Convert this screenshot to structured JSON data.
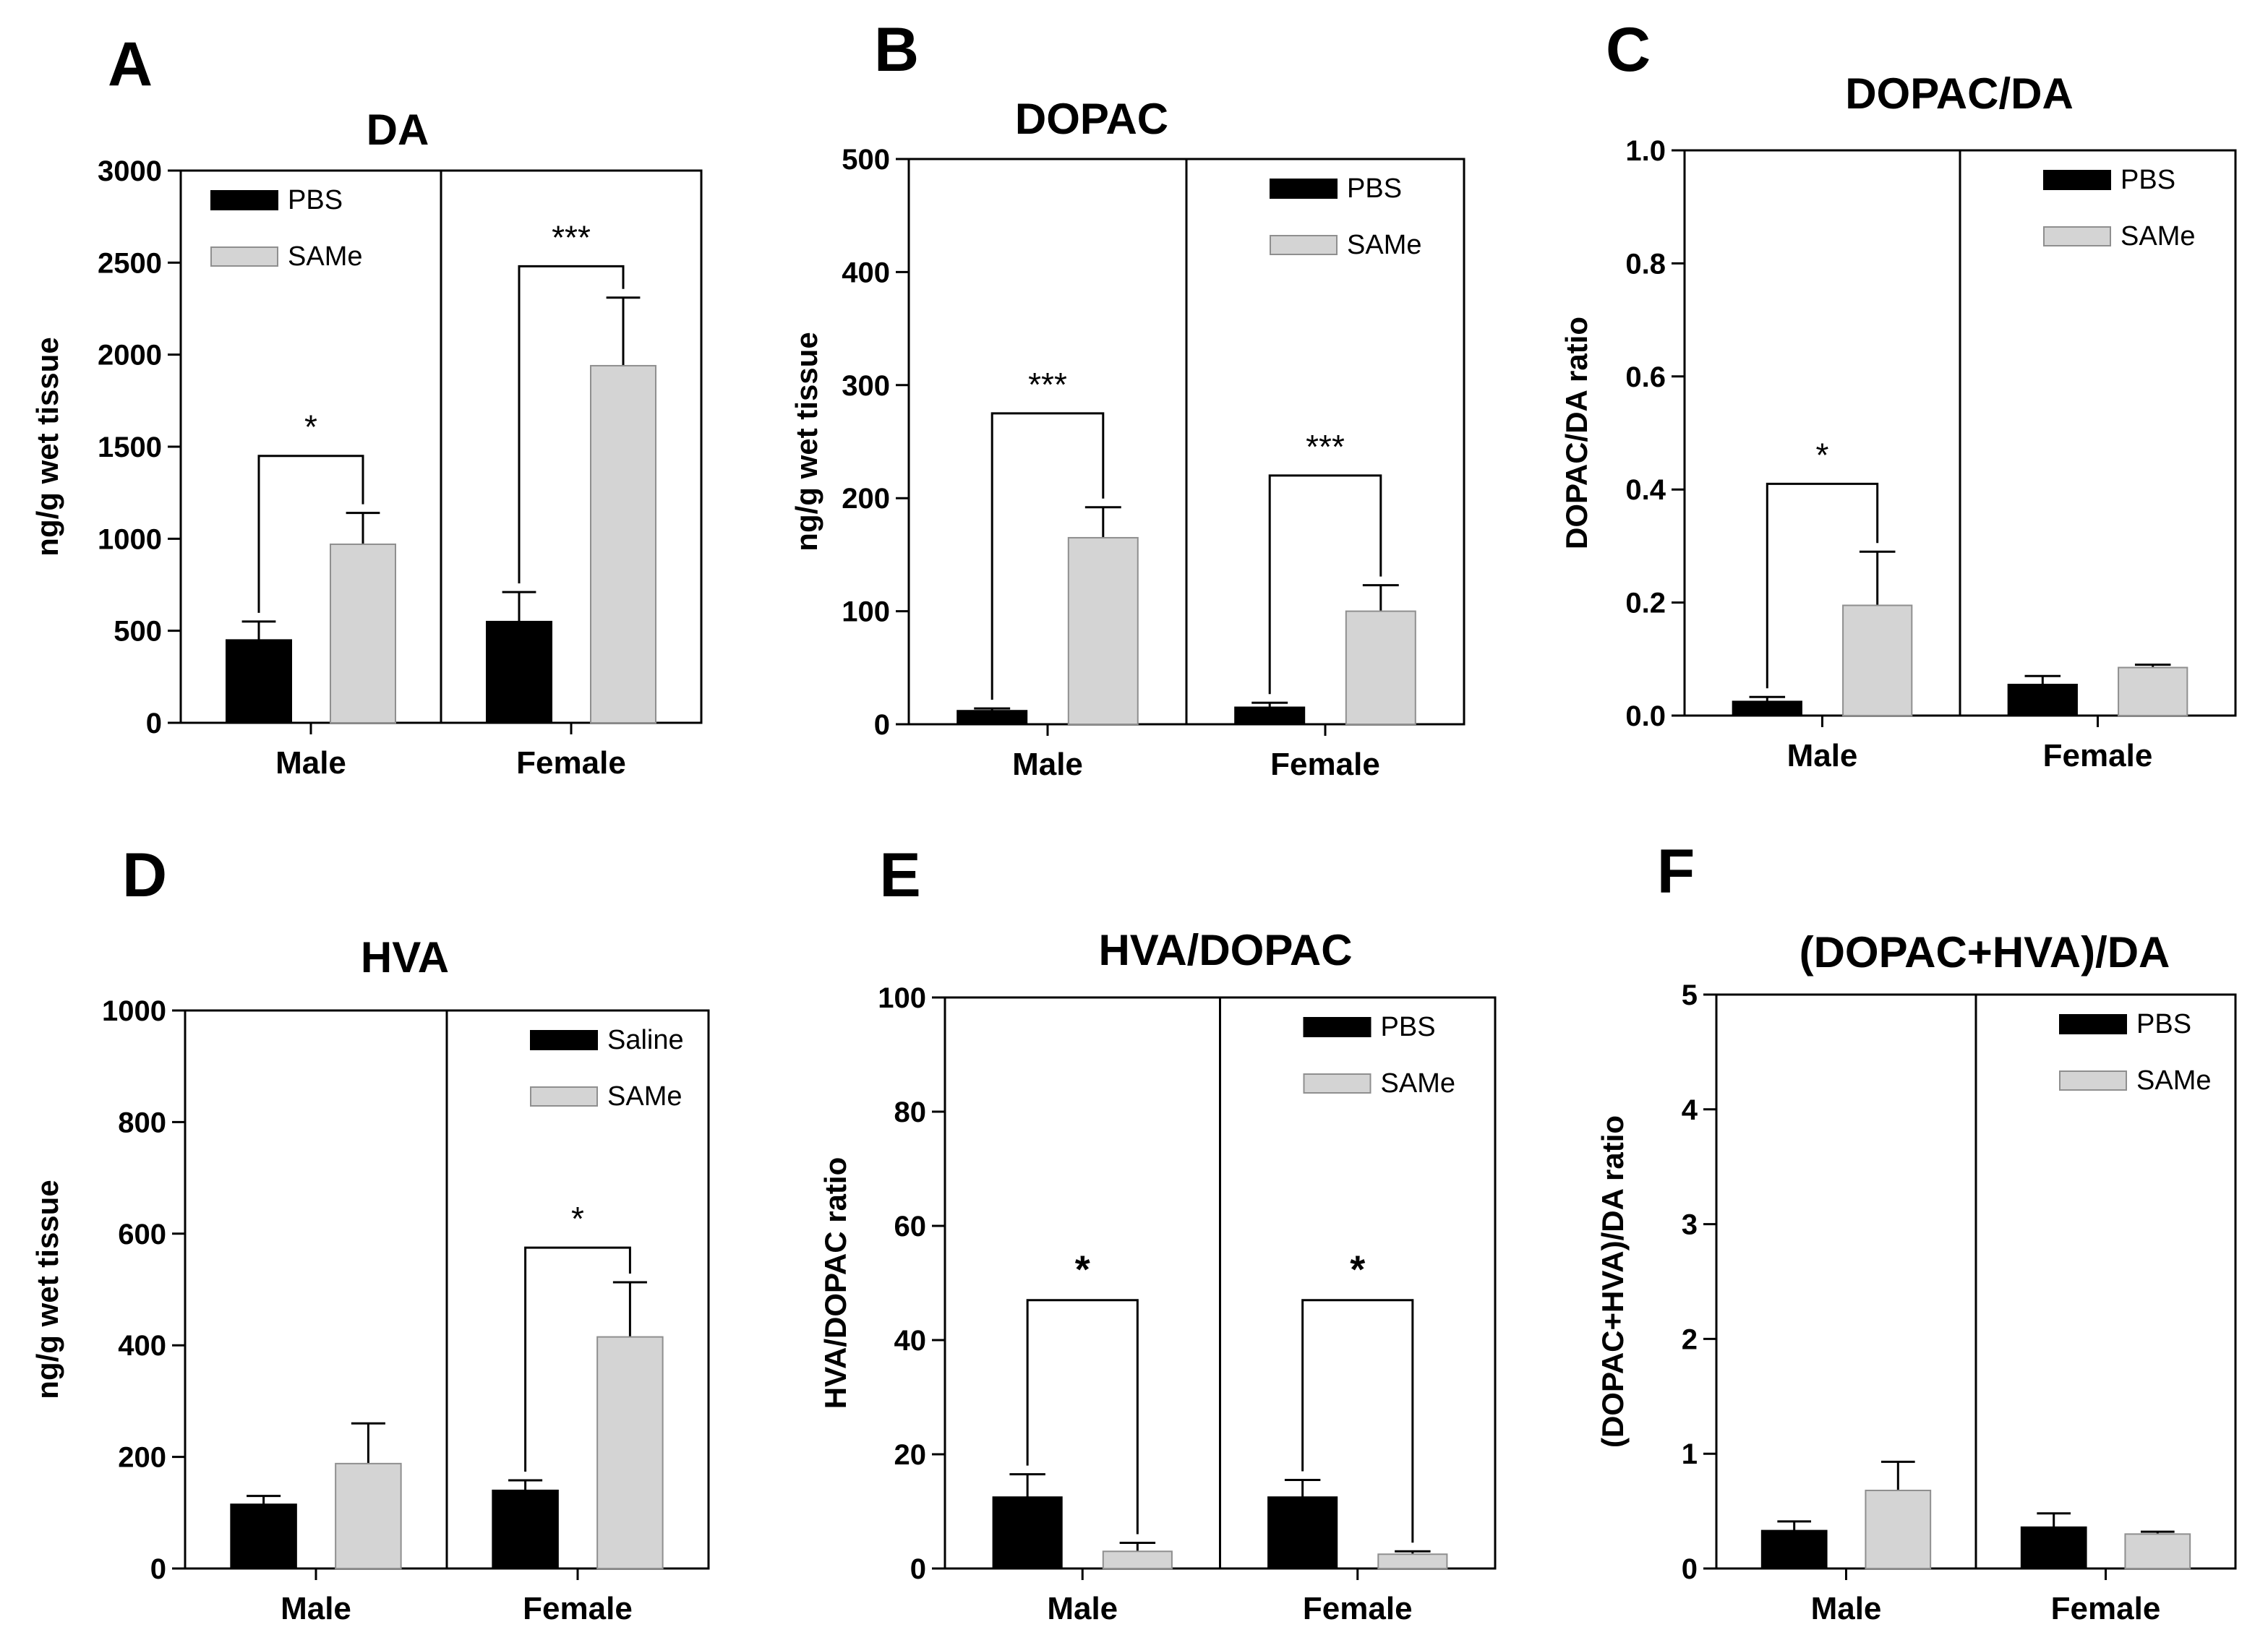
{
  "chart_data": [
    {
      "panel": "A",
      "type": "bar",
      "title": "DA",
      "ylabel": "ng/g wet tissue",
      "ylim": [
        0,
        3000
      ],
      "yticks": [
        0,
        500,
        1000,
        1500,
        2000,
        2500,
        3000
      ],
      "categories": [
        "Male",
        "Female"
      ],
      "legend": {
        "placement": "top-left",
        "labels": [
          "PBS",
          "SAMe"
        ]
      },
      "series": [
        {
          "name": "PBS",
          "color": "#000000",
          "values": [
            450,
            550
          ],
          "errors": [
            100,
            160
          ]
        },
        {
          "name": "SAMe",
          "color": "#d4d4d4",
          "values": [
            970,
            1940
          ],
          "errors": [
            170,
            370
          ]
        }
      ],
      "significance": [
        {
          "category": "Male",
          "label": "*",
          "bracket_y": 1450
        },
        {
          "category": "Female",
          "label": "***",
          "bracket_y": 2480
        }
      ]
    },
    {
      "panel": "B",
      "type": "bar",
      "title": "DOPAC",
      "ylabel": "ng/g wet tissue",
      "ylim": [
        0,
        500
      ],
      "yticks": [
        0,
        100,
        200,
        300,
        400,
        500
      ],
      "categories": [
        "Male",
        "Female"
      ],
      "legend": {
        "placement": "top-right",
        "labels": [
          "PBS",
          "SAMe"
        ]
      },
      "series": [
        {
          "name": "PBS",
          "color": "#000000",
          "values": [
            12,
            15
          ],
          "errors": [
            2,
            4
          ]
        },
        {
          "name": "SAMe",
          "color": "#d4d4d4",
          "values": [
            165,
            100
          ],
          "errors": [
            27,
            23
          ]
        }
      ],
      "significance": [
        {
          "category": "Male",
          "label": "***",
          "bracket_y": 275
        },
        {
          "category": "Female",
          "label": "***",
          "bracket_y": 220
        }
      ]
    },
    {
      "panel": "C",
      "type": "bar",
      "title": "DOPAC/DA",
      "ylabel": "DOPAC/DA ratio",
      "ylim": [
        0,
        1.0
      ],
      "yticks": [
        "0.0",
        "0.2",
        "0.4",
        "0.6",
        "0.8",
        "1.0"
      ],
      "categories": [
        "Male",
        "Female"
      ],
      "legend": {
        "placement": "top-right",
        "labels": [
          "PBS",
          "SAMe"
        ]
      },
      "series": [
        {
          "name": "PBS",
          "color": "#000000",
          "values": [
            0.025,
            0.055
          ],
          "errors": [
            0.008,
            0.015
          ]
        },
        {
          "name": "SAMe",
          "color": "#d4d4d4",
          "values": [
            0.195,
            0.085
          ],
          "errors": [
            0.095,
            0.005
          ]
        }
      ],
      "significance": [
        {
          "category": "Male",
          "label": "*",
          "bracket_y": 0.41
        }
      ]
    },
    {
      "panel": "D",
      "type": "bar",
      "title": "HVA",
      "ylabel": "ng/g wet tissue",
      "ylim": [
        0,
        1000
      ],
      "yticks": [
        0,
        200,
        400,
        600,
        800,
        1000
      ],
      "categories": [
        "Male",
        "Female"
      ],
      "legend": {
        "placement": "top-right",
        "labels": [
          "Saline",
          "SAMe"
        ]
      },
      "series": [
        {
          "name": "Saline",
          "color": "#000000",
          "values": [
            115,
            140
          ],
          "errors": [
            15,
            18
          ]
        },
        {
          "name": "SAMe",
          "color": "#d4d4d4",
          "values": [
            188,
            415
          ],
          "errors": [
            72,
            98
          ]
        }
      ],
      "significance": [
        {
          "category": "Female",
          "label": "*",
          "bracket_y": 575
        }
      ]
    },
    {
      "panel": "E",
      "type": "bar",
      "title": "HVA/DOPAC",
      "ylabel": "HVA/DOPAC ratio",
      "ylim": [
        0,
        100
      ],
      "yticks": [
        0,
        20,
        40,
        60,
        80,
        100
      ],
      "categories": [
        "Male",
        "Female"
      ],
      "legend": {
        "placement": "top-right",
        "labels": [
          "PBS",
          "SAMe"
        ]
      },
      "series": [
        {
          "name": "PBS",
          "color": "#000000",
          "values": [
            12.5,
            12.5
          ],
          "errors": [
            4,
            3
          ]
        },
        {
          "name": "SAMe",
          "color": "#d4d4d4",
          "values": [
            3,
            2.5
          ],
          "errors": [
            1.5,
            0.5
          ]
        }
      ],
      "significance": [
        {
          "category": "Male",
          "label": "*",
          "bracket_y": 47
        },
        {
          "category": "Female",
          "label": "*",
          "bracket_y": 47
        }
      ]
    },
    {
      "panel": "F",
      "type": "bar",
      "title": "(DOPAC+HVA)/DA",
      "ylabel": "(DOPAC+HVA)/DA ratio",
      "ylim": [
        0,
        5
      ],
      "yticks": [
        0,
        1,
        2,
        3,
        4,
        5
      ],
      "categories": [
        "Male",
        "Female"
      ],
      "legend": {
        "placement": "top-right",
        "labels": [
          "PBS",
          "SAMe"
        ]
      },
      "series": [
        {
          "name": "PBS",
          "color": "#000000",
          "values": [
            0.33,
            0.36
          ],
          "errors": [
            0.08,
            0.12
          ]
        },
        {
          "name": "SAMe",
          "color": "#d4d4d4",
          "values": [
            0.68,
            0.3
          ],
          "errors": [
            0.25,
            0.02
          ]
        }
      ],
      "significance": []
    }
  ]
}
